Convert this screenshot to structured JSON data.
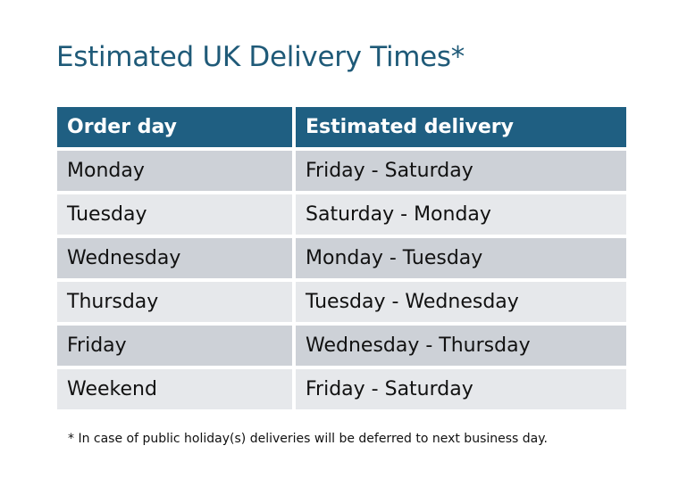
{
  "title": "Estimated UK Delivery Times*",
  "table": {
    "headers": [
      "Order day",
      "Estimated delivery"
    ],
    "rows": [
      [
        "Monday",
        "Friday - Saturday"
      ],
      [
        "Tuesday",
        "Saturday - Monday"
      ],
      [
        "Wednesday",
        "Monday - Tuesday"
      ],
      [
        "Thursday",
        "Tuesday - Wednesday"
      ],
      [
        "Friday",
        "Wednesday - Thursday"
      ],
      [
        "Weekend",
        "Friday - Saturday"
      ]
    ]
  },
  "footnote": "* In case of public holiday(s) deliveries will be deferred to next business day.",
  "colors": {
    "title": "#1f5a78",
    "header_bg": "#1f5f82",
    "row_dark": "#cdd1d7",
    "row_light": "#e6e8eb"
  }
}
